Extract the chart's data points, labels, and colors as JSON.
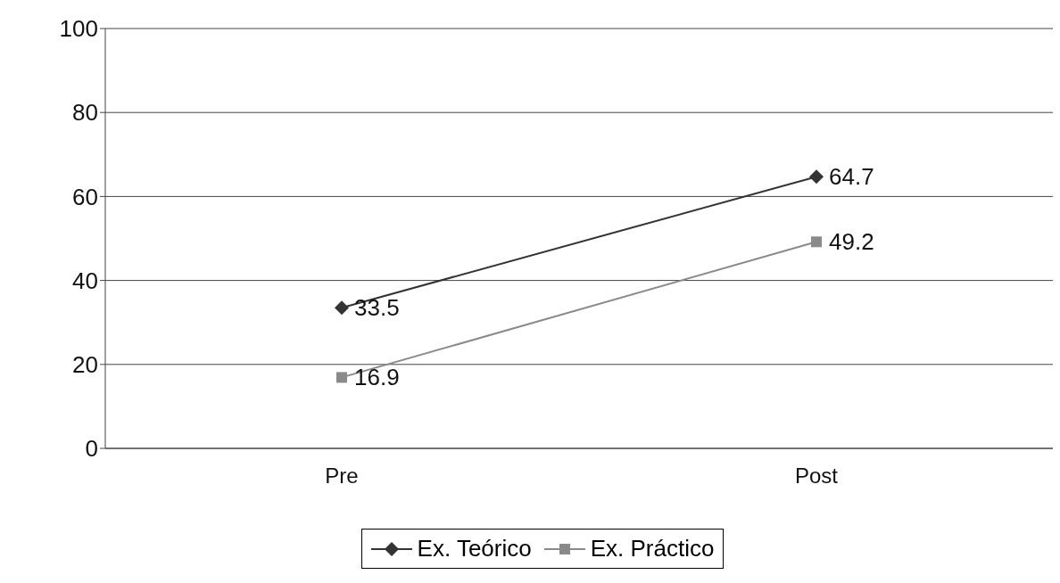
{
  "chart_data": {
    "type": "line",
    "categories": [
      "Pre",
      "Post"
    ],
    "series": [
      {
        "name": "Ex. Teórico",
        "color": "#333333",
        "marker": "diamond",
        "values": [
          33.5,
          64.7
        ]
      },
      {
        "name": "Ex. Práctico",
        "color": "#8a8a8a",
        "marker": "square",
        "values": [
          16.9,
          49.2
        ]
      }
    ],
    "ylim": [
      0,
      100
    ],
    "yticks": [
      0,
      20,
      40,
      60,
      80,
      100
    ],
    "grid": "y",
    "legend": "bottom",
    "data_labels": true,
    "line_style": "solid"
  }
}
